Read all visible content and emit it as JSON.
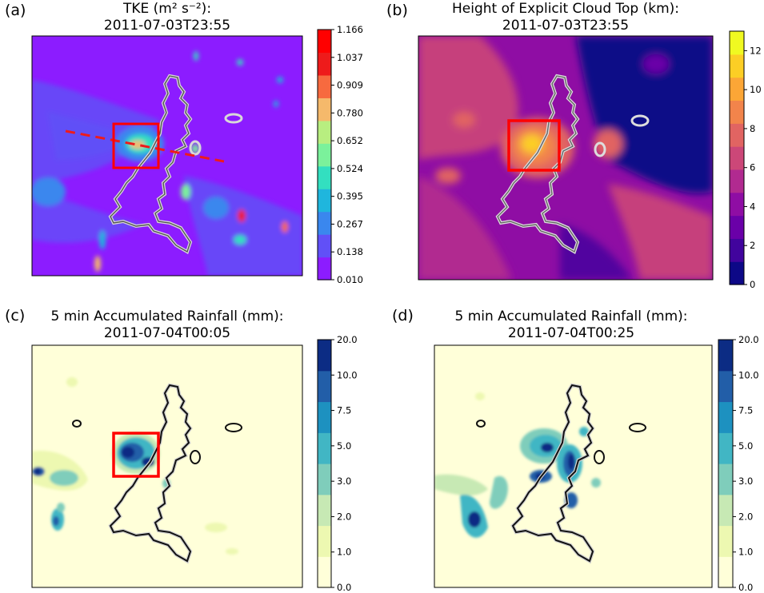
{
  "figure": {
    "type": "4-panel map figure"
  },
  "chart_data": [
    {
      "type": "heatmap",
      "panel_label": "(a)",
      "title_line1": "TKE (m² s⁻²):",
      "title_line2": "2011-07-03T23:55",
      "colorbar": {
        "ticks": [
          "0.010",
          "0.138",
          "0.267",
          "0.395",
          "0.524",
          "0.652",
          "0.780",
          "0.909",
          "1.037",
          "1.166"
        ],
        "colors": [
          "#8c1cff",
          "#6150f7",
          "#3a87ee",
          "#1fb6dd",
          "#33dfc0",
          "#7bf19b",
          "#b8ee80",
          "#f5b96b",
          "#f76a3f",
          "#ee1b1b",
          "#ff0000"
        ],
        "scale": "linear"
      },
      "annotations": [
        "red box",
        "red dashed transect line",
        "white outlined cloud region"
      ]
    },
    {
      "type": "heatmap",
      "panel_label": "(b)",
      "title_line1": "Height of Explicit Cloud Top (km):",
      "title_line2": "2011-07-03T23:55",
      "colorbar": {
        "ticks": [
          "0",
          "2",
          "4",
          "6",
          "8",
          "10",
          "12"
        ],
        "range": [
          0,
          13
        ],
        "colors": [
          "#0d0887",
          "#41049d",
          "#6a00a8",
          "#8f0da4",
          "#b12a90",
          "#cc4778",
          "#e16462",
          "#f2844b",
          "#fca636",
          "#fcce25",
          "#f0f921"
        ],
        "scale": "linear"
      },
      "annotations": [
        "red box",
        "white outlined cloud region"
      ]
    },
    {
      "type": "heatmap",
      "panel_label": "(c)",
      "title_line1": "5 min Accumulated Rainfall (mm):",
      "title_line2": "2011-07-04T00:05",
      "colorbar": {
        "ticks": [
          "0.0",
          "1.0",
          "2.0",
          "3.0",
          "5.0",
          "7.5",
          "10.0",
          "20.0"
        ],
        "colors": [
          "#ffffd9",
          "#edf8b1",
          "#c7e9b4",
          "#7fcdbb",
          "#41b6c4",
          "#1d91c0",
          "#225ea8",
          "#0c2c84"
        ],
        "scale": "stepped"
      },
      "annotations": [
        "red box",
        "black outlined cloud region"
      ]
    },
    {
      "type": "heatmap",
      "panel_label": "(d)",
      "title_line1": "5 min Accumulated Rainfall (mm):",
      "title_line2": "2011-07-04T00:25",
      "colorbar": {
        "ticks": [
          "0.0",
          "1.0",
          "2.0",
          "3.0",
          "5.0",
          "7.5",
          "10.0",
          "20.0"
        ],
        "colors": [
          "#ffffd9",
          "#edf8b1",
          "#c7e9b4",
          "#7fcdbb",
          "#41b6c4",
          "#1d91c0",
          "#225ea8",
          "#0c2c84"
        ],
        "scale": "stepped"
      },
      "annotations": [
        "black outlined cloud region"
      ]
    }
  ]
}
